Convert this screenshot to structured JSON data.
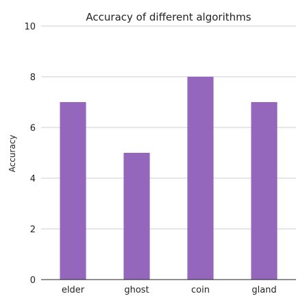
{
  "chart_data": {
    "type": "bar",
    "title": "Accuracy of different algorithms",
    "xlabel": "",
    "ylabel": "Accuracy",
    "categories": [
      "elder",
      "ghost",
      "coin",
      "gland"
    ],
    "values": [
      7,
      5,
      8,
      7
    ],
    "ylim": [
      0,
      10
    ],
    "yticks": [
      0,
      2,
      4,
      6,
      8,
      10
    ],
    "grid": true,
    "bar_color": "#9467bd"
  }
}
